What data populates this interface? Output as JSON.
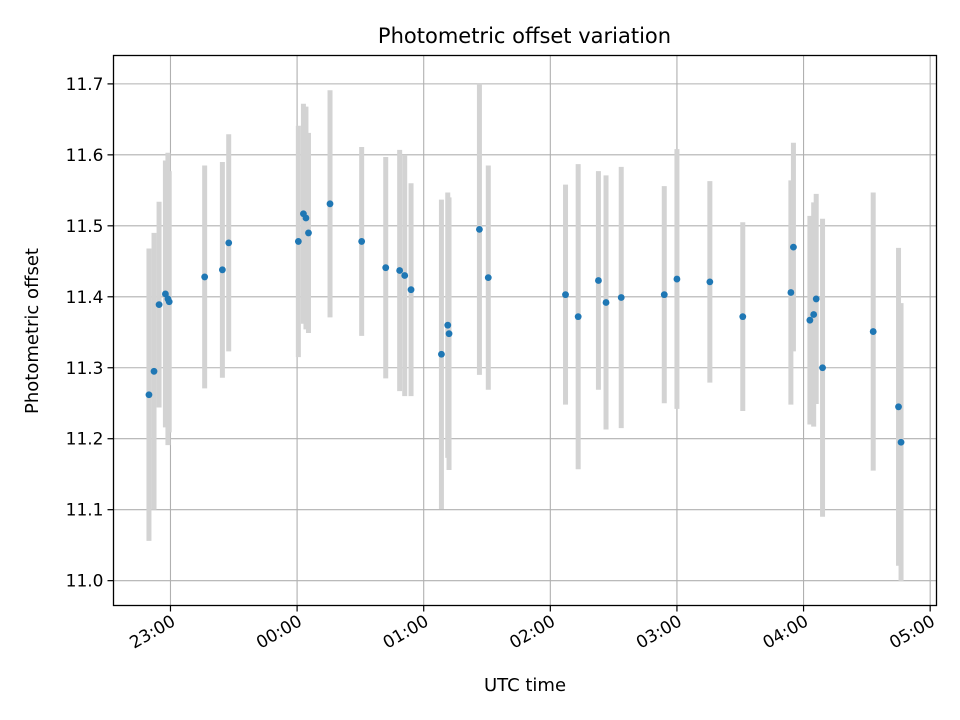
{
  "chart_data": {
    "type": "scatter",
    "title": "Photometric offset variation",
    "xlabel": "UTC time",
    "ylabel": "Photometric offset",
    "grid": true,
    "colors": {
      "point": "#1f77b4",
      "errorbar": "#d3d3d3",
      "grid": "#b0b0b0",
      "axis": "#000000"
    },
    "x_unit": "hours since 00:00 UTC",
    "xlim": [
      -1.45,
      5.05
    ],
    "ylim": [
      10.965,
      11.74
    ],
    "x_ticks": [
      {
        "value": -1,
        "label": "23:00"
      },
      {
        "value": 0,
        "label": "00:00"
      },
      {
        "value": 1,
        "label": "01:00"
      },
      {
        "value": 2,
        "label": "02:00"
      },
      {
        "value": 3,
        "label": "03:00"
      },
      {
        "value": 4,
        "label": "04:00"
      },
      {
        "value": 5,
        "label": "05:00"
      }
    ],
    "y_ticks": [
      {
        "value": 11.0,
        "label": "11.0"
      },
      {
        "value": 11.1,
        "label": "11.1"
      },
      {
        "value": 11.2,
        "label": "11.2"
      },
      {
        "value": 11.3,
        "label": "11.3"
      },
      {
        "value": 11.4,
        "label": "11.4"
      },
      {
        "value": 11.5,
        "label": "11.5"
      },
      {
        "value": 11.6,
        "label": "11.6"
      },
      {
        "value": 11.7,
        "label": "11.7"
      }
    ],
    "points": [
      {
        "x": -1.17,
        "y": 11.262,
        "err": 0.206
      },
      {
        "x": -1.13,
        "y": 11.295,
        "err": 0.195
      },
      {
        "x": -1.09,
        "y": 11.389,
        "err": 0.145
      },
      {
        "x": -1.04,
        "y": 11.404,
        "err": 0.188
      },
      {
        "x": -1.02,
        "y": 11.397,
        "err": 0.206
      },
      {
        "x": -1.01,
        "y": 11.393,
        "err": 0.184
      },
      {
        "x": -0.73,
        "y": 11.428,
        "err": 0.157
      },
      {
        "x": -0.59,
        "y": 11.438,
        "err": 0.152
      },
      {
        "x": -0.54,
        "y": 11.476,
        "err": 0.153
      },
      {
        "x": 0.01,
        "y": 11.478,
        "err": 0.163
      },
      {
        "x": 0.05,
        "y": 11.517,
        "err": 0.155
      },
      {
        "x": 0.07,
        "y": 11.511,
        "err": 0.157
      },
      {
        "x": 0.09,
        "y": 11.49,
        "err": 0.141
      },
      {
        "x": 0.26,
        "y": 11.531,
        "err": 0.16
      },
      {
        "x": 0.51,
        "y": 11.478,
        "err": 0.133
      },
      {
        "x": 0.7,
        "y": 11.441,
        "err": 0.156
      },
      {
        "x": 0.81,
        "y": 11.437,
        "err": 0.17
      },
      {
        "x": 0.85,
        "y": 11.43,
        "err": 0.17
      },
      {
        "x": 0.9,
        "y": 11.41,
        "err": 0.15
      },
      {
        "x": 1.14,
        "y": 11.319,
        "err": 0.218
      },
      {
        "x": 1.19,
        "y": 11.36,
        "err": 0.187
      },
      {
        "x": 1.2,
        "y": 11.348,
        "err": 0.192
      },
      {
        "x": 1.44,
        "y": 11.495,
        "err": 0.205
      },
      {
        "x": 1.51,
        "y": 11.427,
        "err": 0.158
      },
      {
        "x": 2.12,
        "y": 11.403,
        "err": 0.155
      },
      {
        "x": 2.22,
        "y": 11.372,
        "err": 0.215
      },
      {
        "x": 2.38,
        "y": 11.423,
        "err": 0.154
      },
      {
        "x": 2.44,
        "y": 11.392,
        "err": 0.179
      },
      {
        "x": 2.56,
        "y": 11.399,
        "err": 0.184
      },
      {
        "x": 2.9,
        "y": 11.403,
        "err": 0.153
      },
      {
        "x": 3.0,
        "y": 11.425,
        "err": 0.183
      },
      {
        "x": 3.26,
        "y": 11.421,
        "err": 0.142
      },
      {
        "x": 3.52,
        "y": 11.372,
        "err": 0.133
      },
      {
        "x": 3.9,
        "y": 11.406,
        "err": 0.158
      },
      {
        "x": 3.92,
        "y": 11.47,
        "err": 0.147
      },
      {
        "x": 4.05,
        "y": 11.367,
        "err": 0.147
      },
      {
        "x": 4.08,
        "y": 11.375,
        "err": 0.158
      },
      {
        "x": 4.1,
        "y": 11.397,
        "err": 0.148
      },
      {
        "x": 4.15,
        "y": 11.3,
        "err": 0.21
      },
      {
        "x": 4.55,
        "y": 11.351,
        "err": 0.196
      },
      {
        "x": 4.75,
        "y": 11.245,
        "err": 0.224
      },
      {
        "x": 4.77,
        "y": 11.195,
        "err": 0.196
      }
    ]
  }
}
